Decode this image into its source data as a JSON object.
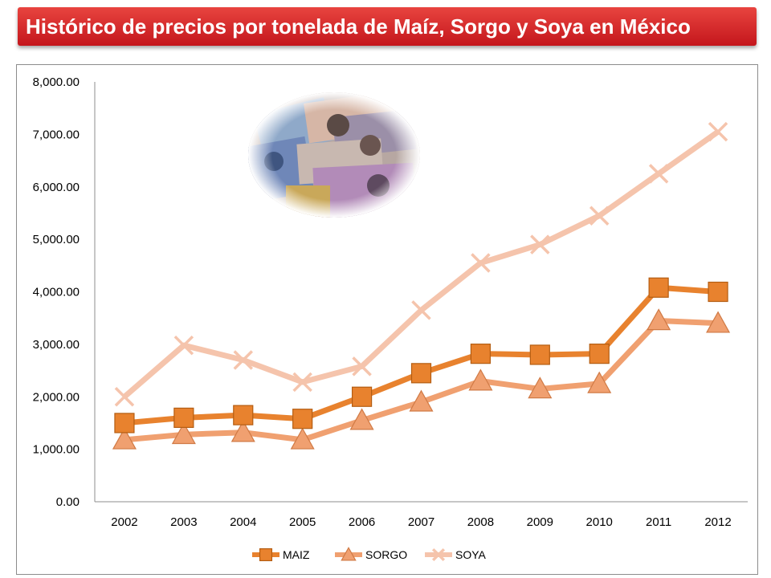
{
  "title": "Histórico de precios por tonelada de Maíz, Sorgo y Soya en México",
  "colors": {
    "title_bg": "#d42a27",
    "maiz": "#e8822e",
    "sorgo": "#f0a070",
    "soya": "#f5c4ac"
  },
  "chart_data": {
    "type": "line",
    "x": [
      "2002",
      "2003",
      "2004",
      "2005",
      "2006",
      "2007",
      "2008",
      "2009",
      "2010",
      "2011",
      "2012"
    ],
    "y_ticks": [
      "0.00",
      "1,000.00",
      "2,000.00",
      "3,000.00",
      "4,000.00",
      "5,000.00",
      "6,000.00",
      "7,000.00",
      "8,000.00"
    ],
    "ylim": [
      0,
      8000
    ],
    "grid": false,
    "legend_position": "bottom",
    "series": [
      {
        "name": "MAIZ",
        "marker": "square",
        "values": [
          1500,
          1600,
          1650,
          1580,
          2000,
          2450,
          2820,
          2800,
          2820,
          4080,
          4000
        ]
      },
      {
        "name": "SORGO",
        "marker": "triangle",
        "values": [
          1180,
          1280,
          1320,
          1180,
          1550,
          1900,
          2300,
          2150,
          2250,
          3450,
          3400
        ]
      },
      {
        "name": "SOYA",
        "marker": "x",
        "values": [
          2000,
          2980,
          2700,
          2280,
          2580,
          3650,
          4550,
          4900,
          5450,
          6250,
          7050
        ]
      }
    ]
  }
}
